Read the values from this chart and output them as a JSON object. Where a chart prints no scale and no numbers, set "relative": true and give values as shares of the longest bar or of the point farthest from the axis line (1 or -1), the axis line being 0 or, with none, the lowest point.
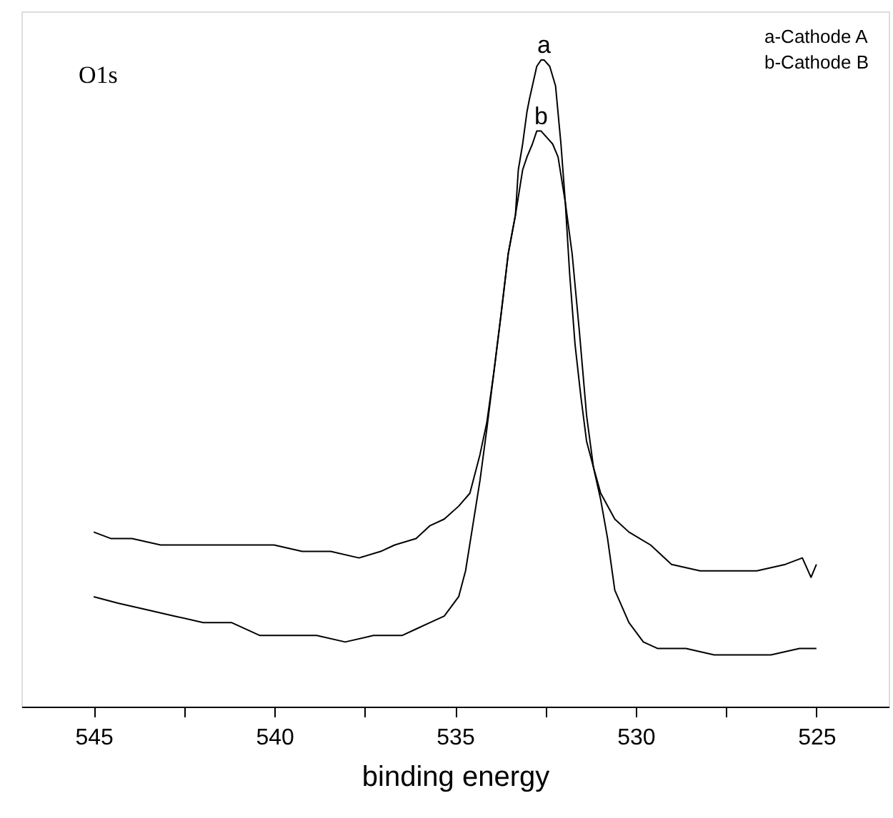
{
  "chart_data": {
    "type": "line",
    "relative": true,
    "xlabel": "binding energy",
    "xlim": [
      547,
      523
    ],
    "xticks": [
      545,
      {
        "value": 542.5,
        "label": null
      },
      540,
      {
        "value": 537.5,
        "label": null
      },
      535,
      {
        "value": 532.5,
        "label": null
      },
      530,
      {
        "value": 527.5,
        "label": null
      },
      525
    ],
    "tick_labels": "x",
    "grid": false,
    "legend": false,
    "marker": "none",
    "line_style": "solid",
    "annotations": [
      "O1s",
      "a-Cathode A",
      "b-Cathode B",
      {
        "text": "a",
        "x": 532.54,
        "y": 1.0
      },
      {
        "text": "b",
        "x": 532.62,
        "y": 0.89
      }
    ],
    "series": [
      {
        "color": "#000000",
        "x": [
          545.0,
          544.53,
          543.94,
          543.15,
          542.37,
          541.58,
          540.8,
          540.01,
          539.23,
          538.44,
          537.66,
          537.06,
          536.67,
          536.08,
          535.69,
          535.3,
          534.9,
          534.59,
          534.31,
          534.12,
          533.92,
          533.72,
          533.53,
          533.33,
          533.25,
          533.13,
          533.01,
          532.94,
          532.86,
          532.74,
          532.62,
          532.54,
          532.38,
          532.22,
          532.07,
          531.95,
          531.83,
          531.68,
          531.52,
          531.36,
          531.17,
          530.97,
          530.58,
          530.19,
          529.59,
          529.01,
          528.22,
          527.44,
          526.65,
          525.86,
          525.39,
          525.15,
          525.0
        ],
        "values": [
          0.27,
          0.26,
          0.26,
          0.25,
          0.25,
          0.25,
          0.25,
          0.25,
          0.24,
          0.24,
          0.23,
          0.24,
          0.25,
          0.26,
          0.28,
          0.29,
          0.31,
          0.33,
          0.39,
          0.44,
          0.52,
          0.61,
          0.7,
          0.76,
          0.83,
          0.87,
          0.92,
          0.94,
          0.96,
          0.99,
          1.0,
          1.0,
          0.99,
          0.96,
          0.87,
          0.78,
          0.67,
          0.56,
          0.48,
          0.41,
          0.37,
          0.33,
          0.29,
          0.27,
          0.25,
          0.22,
          0.21,
          0.21,
          0.21,
          0.22,
          0.23,
          0.2,
          0.22
        ]
      },
      {
        "color": "#000000",
        "x": [
          545.0,
          544.33,
          543.55,
          542.76,
          541.97,
          541.19,
          540.4,
          539.62,
          538.83,
          538.04,
          537.26,
          536.47,
          536.08,
          535.69,
          535.3,
          534.9,
          534.71,
          534.51,
          534.31,
          534.12,
          533.92,
          533.72,
          533.53,
          533.33,
          533.13,
          533.01,
          532.86,
          532.74,
          532.62,
          532.46,
          532.3,
          532.15,
          531.95,
          531.76,
          531.56,
          531.36,
          531.17,
          530.97,
          530.78,
          530.58,
          530.19,
          529.79,
          529.4,
          528.61,
          527.83,
          527.04,
          526.26,
          525.47,
          525.0
        ],
        "values": [
          0.17,
          0.16,
          0.15,
          0.14,
          0.13,
          0.13,
          0.11,
          0.11,
          0.11,
          0.1,
          0.11,
          0.11,
          0.12,
          0.13,
          0.14,
          0.17,
          0.21,
          0.28,
          0.35,
          0.43,
          0.52,
          0.61,
          0.7,
          0.76,
          0.83,
          0.85,
          0.87,
          0.89,
          0.89,
          0.88,
          0.87,
          0.85,
          0.78,
          0.7,
          0.58,
          0.45,
          0.37,
          0.32,
          0.26,
          0.18,
          0.13,
          0.1,
          0.09,
          0.09,
          0.08,
          0.08,
          0.08,
          0.09,
          0.09
        ]
      }
    ]
  }
}
